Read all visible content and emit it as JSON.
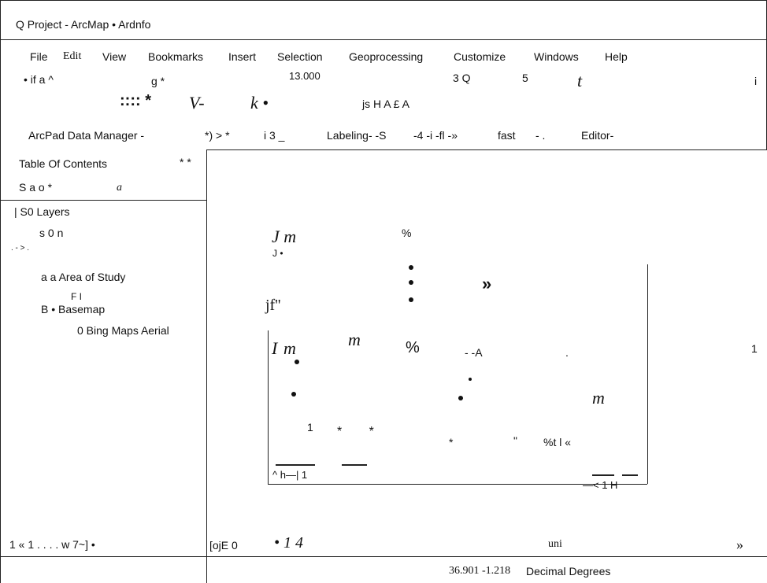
{
  "window": {
    "title": "Q Project - ArcMap • Ardnfo"
  },
  "menu": [
    "File",
    "Edit",
    "View",
    "Bookmarks",
    "Insert",
    "Selection",
    "Geoprocessing",
    "Customize",
    "Windows",
    "Help"
  ],
  "toolbar_1": [
    "• if a ^",
    "g *",
    "13.000",
    "3 Q",
    "5",
    "t",
    "i"
  ],
  "toolbar_2": [
    ":::: *",
    "V-",
    "k •",
    "js H A £ A"
  ],
  "toolbar_3": [
    "ArcPad Data Manager -",
    "*) > *",
    "i 3 _",
    "Labeling- -S",
    "-4 -i -fl -»",
    "fast",
    "- .",
    "Editor-"
  ],
  "toc": {
    "header": "Table Of Contents",
    "header_icons": "* *",
    "tools": "S a o *",
    "tools_2": "a",
    "items": [
      "| S0 Layers",
      "s 0 n",
      ". - > .",
      "a a Area of Study",
      "F I",
      "B • Basemap",
      "0 Bing Maps Aerial"
    ],
    "footer": "1 « 1 . . . . w 7~] •"
  },
  "map": {
    "fragments": [
      "J m",
      "J •",
      "%",
      "»",
      "jf''",
      "I",
      "m",
      "m",
      "%",
      "- -A",
      ".",
      "1",
      "m",
      "1",
      "* *",
      "*",
      "\"",
      "%t l «",
      "^ h—| 1",
      "—< 1 H"
    ]
  },
  "status": {
    "left": "[ojE 0",
    "scale": "• 1 4",
    "unit": "uni",
    "arrow": "»",
    "coords": "36.901 -1.218",
    "coords_unit": "Decimal Degrees"
  }
}
